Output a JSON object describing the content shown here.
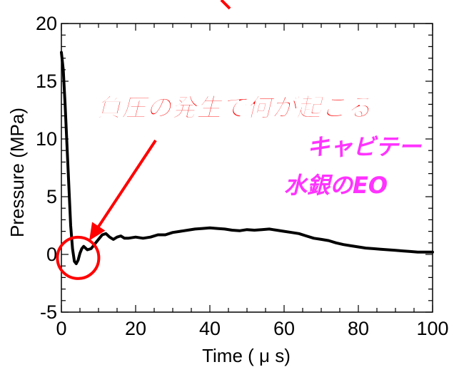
{
  "chart_data": {
    "type": "line",
    "title": "",
    "xlabel": "Time ( μ s)",
    "ylabel": "Pressure (MPa)",
    "xlim": [
      0,
      100
    ],
    "ylim": [
      -5,
      20
    ],
    "x_ticks": [
      0,
      20,
      40,
      60,
      80,
      100
    ],
    "y_ticks": [
      -5,
      0,
      5,
      10,
      15,
      20
    ],
    "x_tick_labels": [
      "0",
      "20",
      "40",
      "60",
      "80",
      "100"
    ],
    "y_tick_labels": [
      "-5",
      "0",
      "5",
      "10",
      "15",
      "20"
    ],
    "grid": false,
    "series": [
      {
        "color": "#000000",
        "x": [
          0,
          0.5,
          1,
          1.5,
          2,
          2.5,
          3,
          3.5,
          4,
          4.5,
          5,
          5.5,
          6,
          7,
          8,
          9,
          10,
          11,
          12,
          13,
          14,
          15,
          16,
          17,
          18,
          20,
          22,
          24,
          26,
          28,
          30,
          32,
          34,
          36,
          38,
          40,
          42,
          44,
          46,
          48,
          50,
          52,
          54,
          56,
          58,
          60,
          62,
          64,
          66,
          68,
          70,
          72,
          74,
          76,
          78,
          80,
          82,
          84,
          86,
          88,
          90,
          92,
          94,
          96,
          98,
          100
        ],
        "y": [
          17.5,
          16.0,
          13.0,
          9.5,
          6.0,
          2.5,
          0.5,
          -0.6,
          -0.8,
          -0.5,
          0.1,
          0.5,
          0.7,
          0.4,
          0.5,
          0.9,
          1.3,
          1.7,
          1.8,
          1.5,
          1.3,
          1.5,
          1.6,
          1.4,
          1.4,
          1.5,
          1.4,
          1.5,
          1.7,
          1.7,
          1.9,
          2.0,
          2.1,
          2.2,
          2.25,
          2.3,
          2.25,
          2.2,
          2.1,
          2.05,
          2.15,
          2.1,
          2.15,
          2.2,
          2.1,
          2.0,
          1.9,
          1.8,
          1.6,
          1.4,
          1.3,
          1.2,
          1.0,
          0.85,
          0.75,
          0.65,
          0.55,
          0.5,
          0.45,
          0.4,
          0.35,
          0.3,
          0.25,
          0.2,
          0.2,
          0.2
        ]
      }
    ],
    "annotations": [
      {
        "text": "負圧の発生で何が起こる",
        "color": "#ff0000"
      },
      {
        "text": "キャビテー",
        "color": "#ff33ff"
      },
      {
        "text": "水銀のEO",
        "color": "#ff33ff"
      }
    ],
    "highlight_circle": {
      "x": 4.5,
      "y": -0.3,
      "color": "#ff0000"
    },
    "arrow": {
      "to_x": 7.5,
      "to_y": 1.2,
      "color": "#ff0000"
    }
  }
}
